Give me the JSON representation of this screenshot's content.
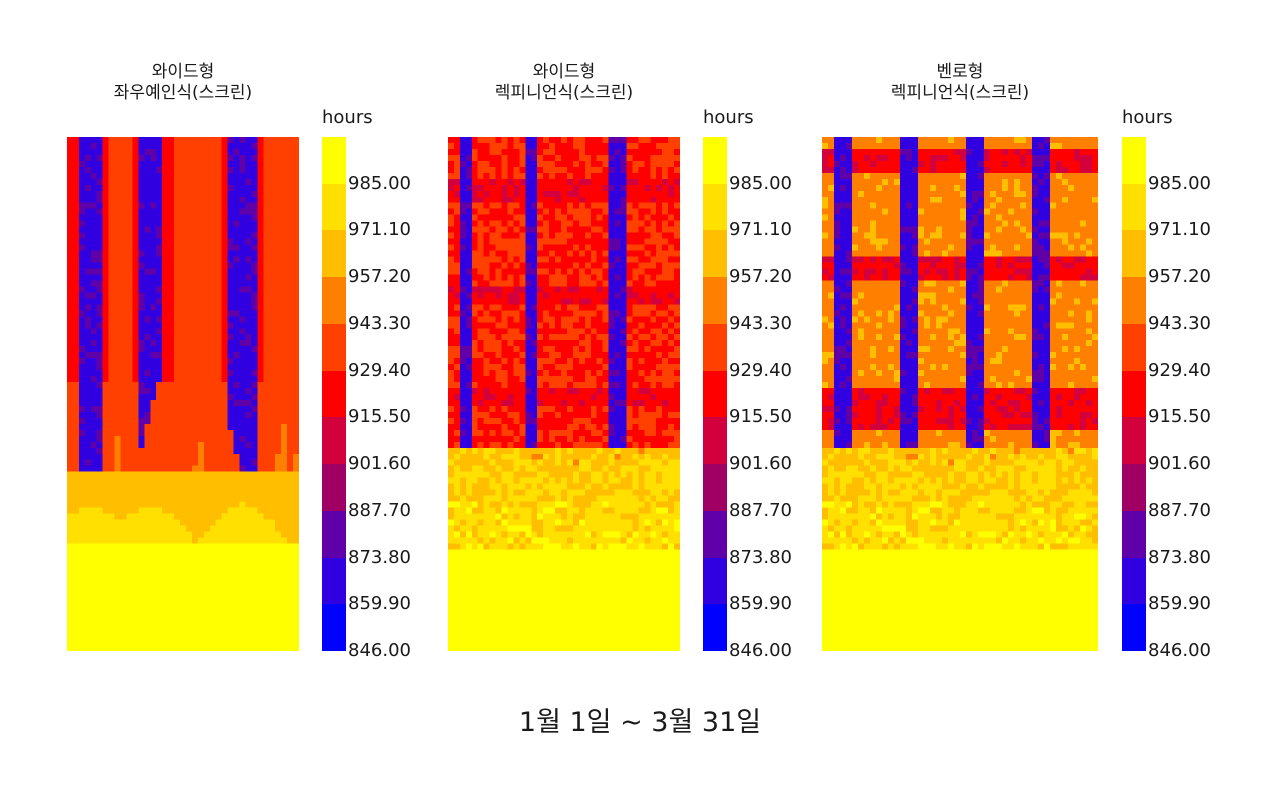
{
  "chart_data": {
    "type": "heatmap",
    "unit_label": "hours",
    "ticks": [
      "985.00",
      "971.10",
      "957.20",
      "943.30",
      "929.40",
      "915.50",
      "901.60",
      "887.70",
      "873.80",
      "859.90",
      "846.00"
    ],
    "colorbar_colors": [
      "#ffff00",
      "#ffe000",
      "#ffbf00",
      "#ff8000",
      "#ff4000",
      "#ff0000",
      "#d2003c",
      "#a00064",
      "#6000a8",
      "#3000e0",
      "#0000ff"
    ],
    "value_range": [
      846.0,
      999.0
    ],
    "panels": [
      {
        "title_line1": "와이드형",
        "title_line2": "좌우예인식(스크린)",
        "pattern": "vertical-strips",
        "low_columns": [
          0.1,
          0.36,
          0.76
        ],
        "annotation": "Blue vertical bands at window columns; yellow (≈985+) across lower ~20% of facade."
      },
      {
        "title_line1": "와이드형",
        "title_line2": "렉피니언식(스크린)",
        "pattern": "grid",
        "low_columns": [
          0.08,
          0.36,
          0.74
        ],
        "annotation": "Red/orange field with blue vertical bands; yellow lower region."
      },
      {
        "title_line1": "벤로형",
        "title_line2": "렉피니언식(스크린)",
        "pattern": "grid",
        "low_columns": [
          0.07,
          0.31,
          0.55,
          0.79
        ],
        "annotation": "Orange cells separated by red/blue grid lines; yellow lower region."
      }
    ]
  },
  "footer_text": "1월 1일  ~ 3월 31일"
}
